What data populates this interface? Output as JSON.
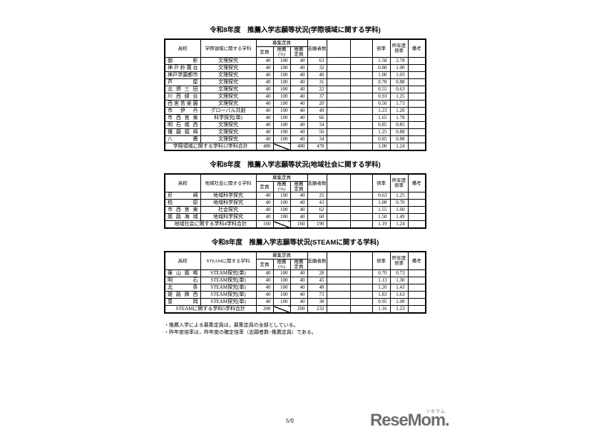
{
  "columns": {
    "school": "高校",
    "recruit": "募集定員",
    "capacity": "定員",
    "recommend_pct": "推薦\n(%)",
    "recommend_capacity": "推薦\n定員",
    "applicants": "志願者数",
    "ratio": "倍率",
    "prev_ratio": "昨年度\n倍率",
    "remarks": "備考"
  },
  "tables": [
    {
      "title": "令和8年度　推薦入学志願等状況(学際領域に関する学科)",
      "dept_header": "学際領域に関する学科",
      "rows": [
        {
          "school": "御影",
          "dept": "文理探究",
          "capacity": "40",
          "pct": "100",
          "rec": "40",
          "app": "63",
          "ratio": "1.58",
          "prev": "2.78"
        },
        {
          "school": "神戸鈴蘭台",
          "dept": "文理探究",
          "capacity": "40",
          "pct": "100",
          "rec": "40",
          "app": "32",
          "ratio": "0.80",
          "prev": "1.00"
        },
        {
          "school": "神戸学園都市",
          "dept": "文理探究",
          "capacity": "40",
          "pct": "100",
          "rec": "40",
          "app": "40",
          "ratio": "1.00",
          "prev": "1.03"
        },
        {
          "school": "芦屋",
          "dept": "文理探究",
          "capacity": "40",
          "pct": "100",
          "rec": "40",
          "app": "31",
          "ratio": "0.78",
          "prev": "0.88"
        },
        {
          "school": "北摂三田",
          "dept": "文理探究",
          "capacity": "40",
          "pct": "100",
          "rec": "40",
          "app": "22",
          "ratio": "0.55",
          "prev": "0.63"
        },
        {
          "school": "川西緑台",
          "dept": "文理探究",
          "capacity": "40",
          "pct": "100",
          "rec": "40",
          "app": "37",
          "ratio": "0.93",
          "prev": "1.25"
        },
        {
          "school": "西宮苦楽園",
          "dept": "文理探究",
          "capacity": "40",
          "pct": "100",
          "rec": "40",
          "app": "20",
          "ratio": "0.50",
          "prev": "1.73"
        },
        {
          "school": "市伊丹",
          "dept": "グローバル共創",
          "capacity": "40",
          "pct": "100",
          "rec": "40",
          "app": "49",
          "ratio": "1.23",
          "prev": "1.20"
        },
        {
          "school": "市西宮東",
          "dept": "科学探究(単)",
          "capacity": "40",
          "pct": "100",
          "rec": "40",
          "app": "66",
          "ratio": "1.65",
          "prev": "1.78"
        },
        {
          "school": "明石城西",
          "dept": "文理探究",
          "capacity": "40",
          "pct": "100",
          "rec": "40",
          "app": "34",
          "ratio": "0.85",
          "prev": "0.85"
        },
        {
          "school": "播磨福崎",
          "dept": "文理探究",
          "capacity": "40",
          "pct": "100",
          "rec": "40",
          "app": "50",
          "ratio": "1.25",
          "prev": "0.88"
        },
        {
          "school": "八鹿",
          "dept": "文理探究",
          "capacity": "40",
          "pct": "100",
          "rec": "40",
          "app": "34",
          "ratio": "0.85",
          "prev": "0.88"
        }
      ],
      "total": {
        "label": "学際領域に関する学科12学科合計",
        "capacity": "480",
        "rec": "480",
        "app": "478",
        "ratio": "1.00",
        "prev": "1.24"
      }
    },
    {
      "title": "令和8年度　推薦入学志願等状況(地域社会に関する学科)",
      "dept_header": "地域社会に関する学科",
      "rows": [
        {
          "school": "尼崎",
          "dept": "地域科学探究",
          "capacity": "40",
          "pct": "100",
          "rec": "40",
          "app": "25",
          "ratio": "0.63",
          "prev": "1.25"
        },
        {
          "school": "柏原",
          "dept": "地域科学探究",
          "capacity": "40",
          "pct": "100",
          "rec": "40",
          "app": "43",
          "ratio": "1.08",
          "prev": "0.70"
        },
        {
          "school": "市西宮東",
          "dept": "社会探究",
          "capacity": "40",
          "pct": "100",
          "rec": "40",
          "app": "62",
          "ratio": "1.55",
          "prev": "1.60"
        },
        {
          "school": "姫路海城",
          "dept": "地域科学探究",
          "capacity": "40",
          "pct": "100",
          "rec": "40",
          "app": "60",
          "ratio": "1.50",
          "prev": "1.49"
        }
      ],
      "total": {
        "label": "地域社会に関する学科4学科合計",
        "capacity": "160",
        "rec": "160",
        "app": "190",
        "ratio": "1.19",
        "prev": "1.24"
      }
    },
    {
      "title": "令和8年度　推薦入学志願等状況(STEAMに関する学科)",
      "dept_header": "STEAMに関する学科",
      "rows": [
        {
          "school": "篠山鳳鳴",
          "dept": "STEAM探究(単)",
          "capacity": "40",
          "pct": "100",
          "rec": "40",
          "app": "28",
          "ratio": "0.70",
          "prev": "0.73"
        },
        {
          "school": "明石",
          "dept": "STEAM探究(単)",
          "capacity": "40",
          "pct": "100",
          "rec": "40",
          "app": "45",
          "ratio": "1.13",
          "prev": "1.30"
        },
        {
          "school": "北条",
          "dept": "STEAM探究(単)",
          "capacity": "40",
          "pct": "100",
          "rec": "40",
          "app": "48",
          "ratio": "1.20",
          "prev": "1.43"
        },
        {
          "school": "姫路飾西",
          "dept": "STEAM探究(単)",
          "capacity": "40",
          "pct": "100",
          "rec": "40",
          "app": "73",
          "ratio": "1.83",
          "prev": "1.63"
        },
        {
          "school": "豊岡",
          "dept": "STEAM探究(単)",
          "capacity": "40",
          "pct": "100",
          "rec": "40",
          "app": "38",
          "ratio": "0.95",
          "prev": "1.08"
        }
      ],
      "total": {
        "label": "STEAMに関する学科5学科合計",
        "capacity": "200",
        "rec": "200",
        "app": "232",
        "ratio": "1.16",
        "prev": "1.23"
      }
    }
  ],
  "notes": [
    "・推薦入学による募集定員は，募集定員の全部としている。",
    "・昨年度倍率は，昨年度の確定倍率（志願者数÷推薦定員）である。"
  ],
  "footer": {
    "page_number": "5/9",
    "logo_text": "ReseMom",
    "logo_ruby": "リセマム",
    "logo_period": "."
  }
}
